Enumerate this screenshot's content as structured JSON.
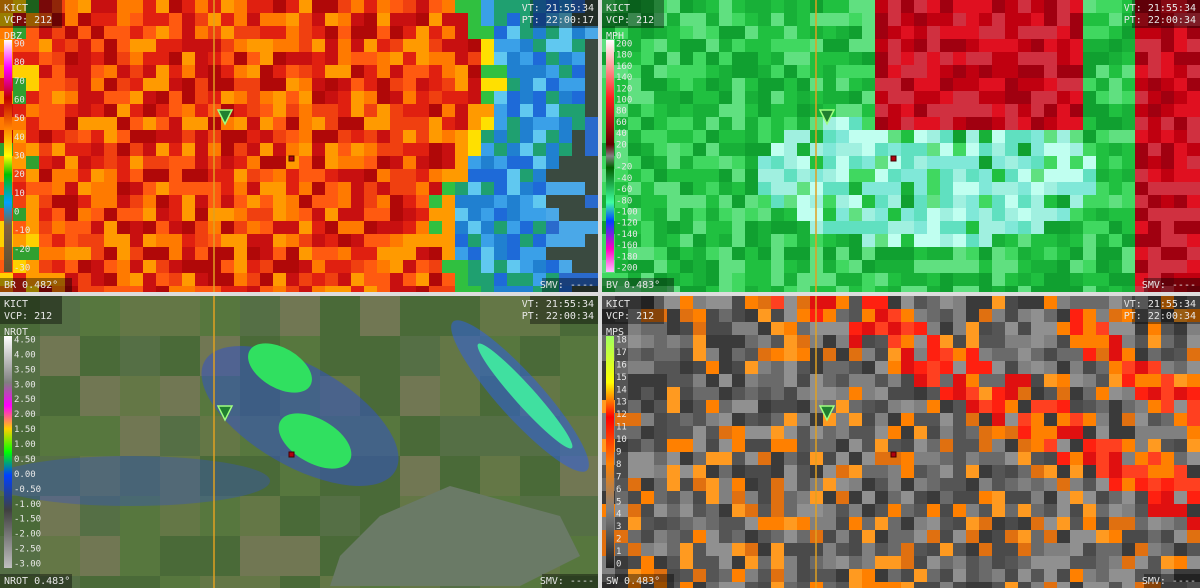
{
  "panels": [
    {
      "station": "KICT",
      "vcp": "VCP: 212",
      "vt": "VT: 21:55:34",
      "pt": "PT: 22:00:17",
      "unit": "DBZ",
      "product": "BR 0.482°",
      "smv": "SMV: ----",
      "scale": [
        "90",
        "80",
        "70",
        "60",
        "50",
        "40",
        "30",
        "20",
        "10",
        "0",
        "-10",
        "-20",
        "-30"
      ]
    },
    {
      "station": "KICT",
      "vcp": "VCP: 212",
      "vt": "VT: 21:55:34",
      "pt": "PT: 22:00:34",
      "unit": "MPH",
      "product": "BV 0.483°",
      "smv": "SMV: ----",
      "scale": [
        "200",
        "180",
        "160",
        "140",
        "120",
        "100",
        "80",
        "60",
        "40",
        "20",
        "0",
        "-20",
        "-40",
        "-60",
        "-80",
        "-100",
        "-120",
        "-140",
        "-160",
        "-180",
        "-200"
      ]
    },
    {
      "station": "KICT",
      "vcp": "VCP: 212",
      "vt": "VT: 21:55:34",
      "pt": "PT: 22:00:34",
      "unit": "NROT",
      "product": "NROT 0.483°",
      "smv": "SMV: ----",
      "scale": [
        "4.50",
        "4.00",
        "3.50",
        "3.00",
        "2.50",
        "2.00",
        "1.50",
        "1.00",
        "0.50",
        "0.00",
        "-0.50",
        "-1.00",
        "-1.50",
        "-2.00",
        "-2.50",
        "-3.00"
      ]
    },
    {
      "station": "KICT",
      "vcp": "VCP: 212",
      "vt": "VT: 21:55:34",
      "pt": "PT: 22:00:34",
      "unit": "MPS",
      "product": "SW 0.483°",
      "smv": "SMV: ----",
      "scale": [
        "18",
        "17",
        "16",
        "15",
        "14",
        "13",
        "12",
        "11",
        "10",
        "9",
        "8",
        "7",
        "6",
        "5",
        "4",
        "3",
        "2",
        "1",
        "0"
      ]
    }
  ]
}
